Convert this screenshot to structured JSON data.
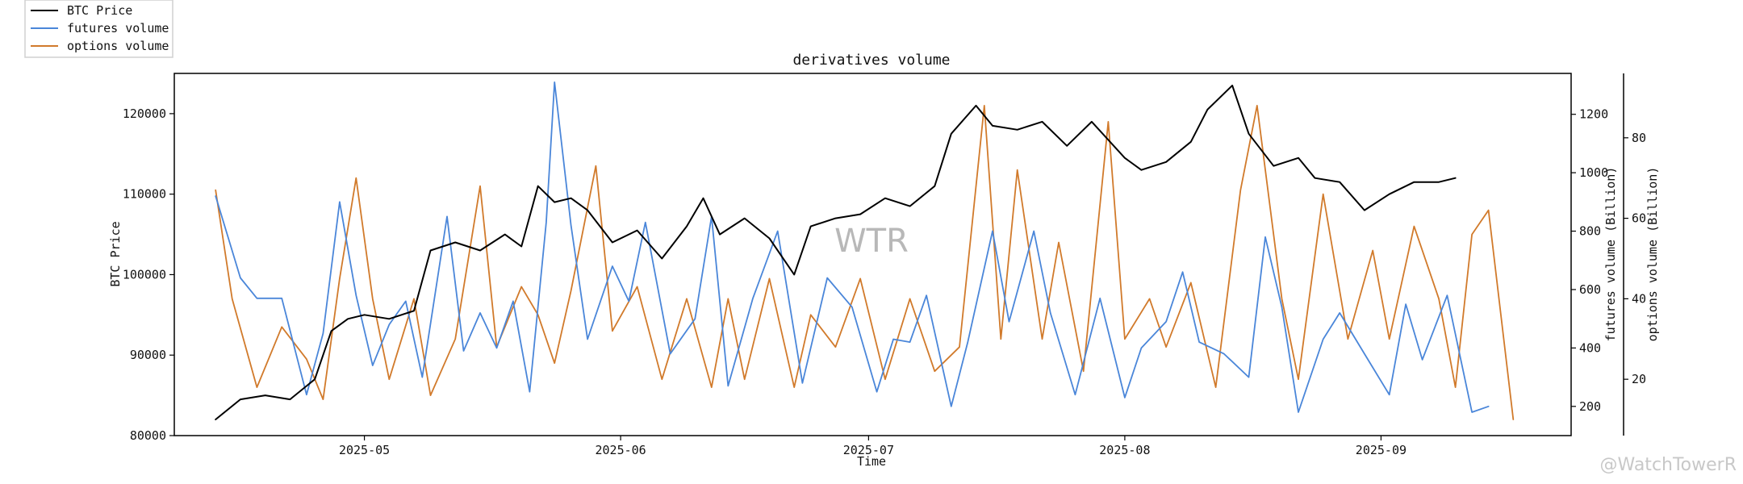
{
  "chart_data": {
    "type": "line",
    "title": "derivatives volume",
    "xlabel": "Time",
    "x_tick_labels": [
      "2025-05",
      "2025-06",
      "2025-07",
      "2025-08",
      "2025-09"
    ],
    "x_ticks": [
      "2025-05-01",
      "2025-06-01",
      "2025-07-01",
      "2025-08-01",
      "2025-09-01"
    ],
    "x_range": [
      "2025-04-08",
      "2025-09-24"
    ],
    "left_axis": {
      "label": "BTC Price",
      "ylim": [
        80000,
        125000
      ],
      "ticks": [
        80000,
        90000,
        100000,
        110000,
        120000
      ],
      "tick_labels": [
        "80000",
        "90000",
        "100000",
        "110000",
        "120000"
      ]
    },
    "right_axis_1": {
      "label": "futures volume (Billion)",
      "ylim": [
        100,
        1340
      ],
      "ticks": [
        200,
        400,
        600,
        800,
        1000,
        1200
      ],
      "tick_labels": [
        "200",
        "400",
        "600",
        "800",
        "1000",
        "1200"
      ]
    },
    "right_axis_2": {
      "label": "options volume (Billion)",
      "ylim": [
        6,
        96
      ],
      "ticks": [
        20,
        40,
        60,
        80
      ],
      "tick_labels": [
        "20",
        "40",
        "60",
        "80"
      ]
    },
    "legend": {
      "placement": "top-left",
      "entries": [
        "BTC Price",
        "futures volume",
        "options volume"
      ]
    },
    "series": [
      {
        "name": "BTC Price",
        "axis": "left",
        "color": "#000000",
        "points": [
          [
            "2025-04-13",
            82000
          ],
          [
            "2025-04-16",
            84500
          ],
          [
            "2025-04-19",
            85000
          ],
          [
            "2025-04-22",
            84500
          ],
          [
            "2025-04-25",
            87000
          ],
          [
            "2025-04-27",
            93000
          ],
          [
            "2025-04-29",
            94500
          ],
          [
            "2025-05-01",
            95000
          ],
          [
            "2025-05-04",
            94500
          ],
          [
            "2025-05-07",
            95500
          ],
          [
            "2025-05-09",
            103000
          ],
          [
            "2025-05-12",
            104000
          ],
          [
            "2025-05-15",
            103000
          ],
          [
            "2025-05-18",
            105000
          ],
          [
            "2025-05-20",
            103500
          ],
          [
            "2025-05-22",
            111000
          ],
          [
            "2025-05-24",
            109000
          ],
          [
            "2025-05-26",
            109500
          ],
          [
            "2025-05-28",
            108000
          ],
          [
            "2025-05-31",
            104000
          ],
          [
            "2025-06-03",
            105500
          ],
          [
            "2025-06-06",
            102000
          ],
          [
            "2025-06-09",
            106000
          ],
          [
            "2025-06-11",
            109500
          ],
          [
            "2025-06-13",
            105000
          ],
          [
            "2025-06-16",
            107000
          ],
          [
            "2025-06-19",
            104500
          ],
          [
            "2025-06-22",
            100000
          ],
          [
            "2025-06-24",
            106000
          ],
          [
            "2025-06-27",
            107000
          ],
          [
            "2025-06-30",
            107500
          ],
          [
            "2025-07-03",
            109500
          ],
          [
            "2025-07-06",
            108500
          ],
          [
            "2025-07-09",
            111000
          ],
          [
            "2025-07-11",
            117500
          ],
          [
            "2025-07-14",
            121000
          ],
          [
            "2025-07-16",
            118500
          ],
          [
            "2025-07-19",
            118000
          ],
          [
            "2025-07-22",
            119000
          ],
          [
            "2025-07-25",
            116000
          ],
          [
            "2025-07-28",
            119000
          ],
          [
            "2025-08-01",
            114500
          ],
          [
            "2025-08-03",
            113000
          ],
          [
            "2025-08-06",
            114000
          ],
          [
            "2025-08-09",
            116500
          ],
          [
            "2025-08-11",
            120500
          ],
          [
            "2025-08-14",
            123500
          ],
          [
            "2025-08-16",
            117500
          ],
          [
            "2025-08-19",
            113500
          ],
          [
            "2025-08-22",
            114500
          ],
          [
            "2025-08-24",
            112000
          ],
          [
            "2025-08-27",
            111500
          ],
          [
            "2025-08-30",
            108000
          ],
          [
            "2025-09-02",
            110000
          ],
          [
            "2025-09-05",
            111500
          ],
          [
            "2025-09-08",
            111500
          ],
          [
            "2025-09-10",
            112000
          ]
        ]
      },
      {
        "name": "futures volume",
        "axis": "right_1",
        "color": "#4a86d9",
        "points": [
          [
            "2025-04-13",
            920
          ],
          [
            "2025-04-16",
            640
          ],
          [
            "2025-04-18",
            570
          ],
          [
            "2025-04-21",
            570
          ],
          [
            "2025-04-24",
            240
          ],
          [
            "2025-04-26",
            450
          ],
          [
            "2025-04-28",
            900
          ],
          [
            "2025-04-30",
            580
          ],
          [
            "2025-05-02",
            340
          ],
          [
            "2025-05-04",
            480
          ],
          [
            "2025-05-06",
            560
          ],
          [
            "2025-05-08",
            300
          ],
          [
            "2025-05-11",
            850
          ],
          [
            "2025-05-13",
            390
          ],
          [
            "2025-05-15",
            520
          ],
          [
            "2025-05-17",
            400
          ],
          [
            "2025-05-19",
            560
          ],
          [
            "2025-05-21",
            250
          ],
          [
            "2025-05-23",
            830
          ],
          [
            "2025-05-24",
            1310
          ],
          [
            "2025-05-26",
            820
          ],
          [
            "2025-05-28",
            430
          ],
          [
            "2025-05-31",
            680
          ],
          [
            "2025-06-02",
            560
          ],
          [
            "2025-06-04",
            830
          ],
          [
            "2025-06-07",
            380
          ],
          [
            "2025-06-10",
            500
          ],
          [
            "2025-06-12",
            850
          ],
          [
            "2025-06-14",
            270
          ],
          [
            "2025-06-17",
            570
          ],
          [
            "2025-06-20",
            800
          ],
          [
            "2025-06-23",
            280
          ],
          [
            "2025-06-26",
            640
          ],
          [
            "2025-06-29",
            540
          ],
          [
            "2025-07-02",
            250
          ],
          [
            "2025-07-04",
            430
          ],
          [
            "2025-07-06",
            420
          ],
          [
            "2025-07-08",
            580
          ],
          [
            "2025-07-11",
            200
          ],
          [
            "2025-07-13",
            420
          ],
          [
            "2025-07-16",
            800
          ],
          [
            "2025-07-18",
            490
          ],
          [
            "2025-07-21",
            800
          ],
          [
            "2025-07-23",
            520
          ],
          [
            "2025-07-26",
            240
          ],
          [
            "2025-07-29",
            570
          ],
          [
            "2025-08-01",
            230
          ],
          [
            "2025-08-03",
            400
          ],
          [
            "2025-08-06",
            490
          ],
          [
            "2025-08-08",
            660
          ],
          [
            "2025-08-10",
            420
          ],
          [
            "2025-08-13",
            380
          ],
          [
            "2025-08-16",
            300
          ],
          [
            "2025-08-18",
            780
          ],
          [
            "2025-08-20",
            540
          ],
          [
            "2025-08-22",
            180
          ],
          [
            "2025-08-25",
            430
          ],
          [
            "2025-08-27",
            520
          ],
          [
            "2025-08-30",
            380
          ],
          [
            "2025-09-02",
            240
          ],
          [
            "2025-09-04",
            550
          ],
          [
            "2025-09-06",
            360
          ],
          [
            "2025-09-09",
            580
          ],
          [
            "2025-09-12",
            180
          ],
          [
            "2025-09-14",
            200
          ]
        ]
      },
      {
        "name": "options volume",
        "axis": "right_2",
        "color": "#d17a2b",
        "points": [
          [
            "2025-04-13",
            67
          ],
          [
            "2025-04-15",
            40
          ],
          [
            "2025-04-18",
            18
          ],
          [
            "2025-04-21",
            33
          ],
          [
            "2025-04-24",
            25
          ],
          [
            "2025-04-26",
            15
          ],
          [
            "2025-04-28",
            45
          ],
          [
            "2025-04-30",
            70
          ],
          [
            "2025-05-02",
            40
          ],
          [
            "2025-05-04",
            20
          ],
          [
            "2025-05-07",
            40
          ],
          [
            "2025-05-09",
            16
          ],
          [
            "2025-05-12",
            30
          ],
          [
            "2025-05-15",
            68
          ],
          [
            "2025-05-17",
            28
          ],
          [
            "2025-05-20",
            43
          ],
          [
            "2025-05-22",
            36
          ],
          [
            "2025-05-24",
            24
          ],
          [
            "2025-05-26",
            42
          ],
          [
            "2025-05-29",
            73
          ],
          [
            "2025-05-31",
            32
          ],
          [
            "2025-06-03",
            43
          ],
          [
            "2025-06-06",
            20
          ],
          [
            "2025-06-09",
            40
          ],
          [
            "2025-06-12",
            18
          ],
          [
            "2025-06-14",
            40
          ],
          [
            "2025-06-16",
            20
          ],
          [
            "2025-06-19",
            45
          ],
          [
            "2025-06-22",
            18
          ],
          [
            "2025-06-24",
            36
          ],
          [
            "2025-06-27",
            28
          ],
          [
            "2025-06-30",
            45
          ],
          [
            "2025-07-03",
            20
          ],
          [
            "2025-07-06",
            40
          ],
          [
            "2025-07-09",
            22
          ],
          [
            "2025-07-12",
            28
          ],
          [
            "2025-07-15",
            88
          ],
          [
            "2025-07-17",
            30
          ],
          [
            "2025-07-19",
            72
          ],
          [
            "2025-07-22",
            30
          ],
          [
            "2025-07-24",
            54
          ],
          [
            "2025-07-27",
            22
          ],
          [
            "2025-07-30",
            84
          ],
          [
            "2025-08-01",
            30
          ],
          [
            "2025-08-04",
            40
          ],
          [
            "2025-08-06",
            28
          ],
          [
            "2025-08-09",
            44
          ],
          [
            "2025-08-12",
            18
          ],
          [
            "2025-08-15",
            67
          ],
          [
            "2025-08-17",
            88
          ],
          [
            "2025-08-20",
            40
          ],
          [
            "2025-08-22",
            20
          ],
          [
            "2025-08-25",
            66
          ],
          [
            "2025-08-28",
            30
          ],
          [
            "2025-08-31",
            52
          ],
          [
            "2025-09-02",
            30
          ],
          [
            "2025-09-05",
            58
          ],
          [
            "2025-09-08",
            40
          ],
          [
            "2025-09-10",
            18
          ],
          [
            "2025-09-12",
            56
          ],
          [
            "2025-09-14",
            62
          ],
          [
            "2025-09-17",
            10
          ]
        ]
      }
    ]
  },
  "watermark": "WTR",
  "credit": "@WatchTowerR"
}
